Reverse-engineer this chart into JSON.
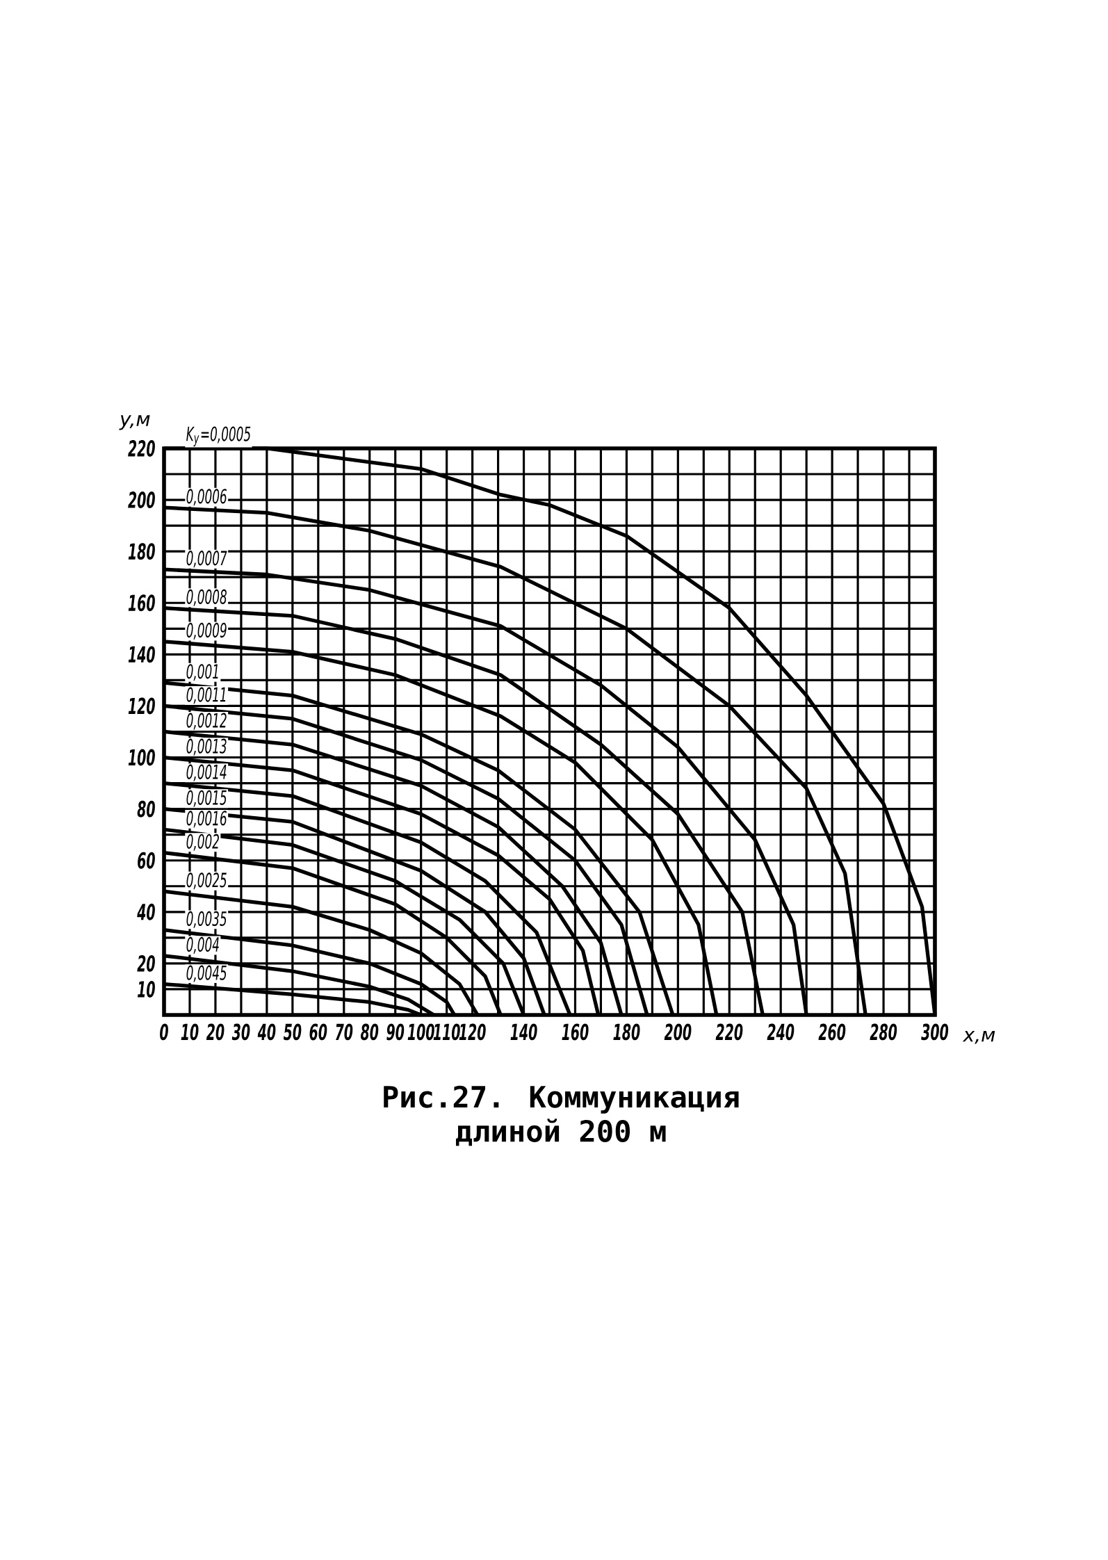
{
  "chart_data": {
    "type": "line",
    "xlabel": "x,м",
    "ylabel": "y,м",
    "xlim": [
      0,
      300
    ],
    "ylim": [
      0,
      220
    ],
    "xticks": [
      0,
      10,
      20,
      30,
      40,
      50,
      60,
      70,
      80,
      90,
      100,
      110,
      120,
      {
        "value": 130,
        "label": null
      },
      140,
      {
        "value": 150,
        "label": null
      },
      160,
      {
        "value": 170,
        "label": null
      },
      180,
      {
        "value": 190,
        "label": null
      },
      200,
      {
        "value": 210,
        "label": null
      },
      220,
      {
        "value": 230,
        "label": null
      },
      240,
      {
        "value": 250,
        "label": null
      },
      260,
      {
        "value": 270,
        "label": null
      },
      280,
      {
        "value": 290,
        "label": null
      },
      300
    ],
    "yticks": [
      {
        "value": 0,
        "label": null
      },
      10,
      20,
      {
        "value": 30,
        "label": null
      },
      40,
      {
        "value": 50,
        "label": null
      },
      60,
      {
        "value": 70,
        "label": null
      },
      80,
      {
        "value": 90,
        "label": null
      },
      100,
      {
        "value": 110,
        "label": null
      },
      120,
      {
        "value": 130,
        "label": null
      },
      140,
      {
        "value": 150,
        "label": null
      },
      160,
      {
        "value": 170,
        "label": null
      },
      180,
      {
        "value": 190,
        "label": null
      },
      200,
      {
        "value": 210,
        "label": null
      },
      220
    ],
    "grid": true,
    "marker": "none",
    "line_style": "solid",
    "annotations": [
      "Рис.27. Коммуникация",
      "длиной 200 м"
    ],
    "series": [
      {
        "name": "K$_{у}$=0,0005",
        "color": "#000000",
        "x": [
          0,
          40,
          100,
          131,
          150,
          180,
          220,
          250,
          280,
          295,
          300
        ],
        "values": [
          220,
          220,
          212,
          202,
          198,
          186,
          158,
          124,
          82,
          42,
          0
        ]
      },
      {
        "name": "0,0006",
        "color": "#000000",
        "x": [
          0,
          40,
          80,
          131,
          180,
          220,
          250,
          265,
          273
        ],
        "values": [
          197,
          195,
          188,
          174,
          150,
          120,
          88,
          55,
          0
        ]
      },
      {
        "name": "0,0007",
        "color": "#000000",
        "x": [
          0,
          40,
          80,
          131,
          170,
          200,
          230,
          245,
          250
        ],
        "values": [
          173,
          171,
          165,
          151,
          128,
          104,
          68,
          35,
          0
        ]
      },
      {
        "name": "0,0008",
        "color": "#000000",
        "x": [
          0,
          50,
          90,
          131,
          170,
          200,
          225,
          233
        ],
        "values": [
          158,
          155,
          146,
          132,
          105,
          78,
          40,
          0
        ]
      },
      {
        "name": "0,0009",
        "color": "#000000",
        "x": [
          0,
          50,
          90,
          131,
          160,
          190,
          208,
          215
        ],
        "values": [
          145,
          141,
          132,
          116,
          98,
          68,
          35,
          0
        ]
      },
      {
        "name": "0,001",
        "color": "#000000",
        "x": [
          0,
          50,
          100,
          130,
          160,
          185,
          198
        ],
        "values": [
          129,
          124,
          109,
          95,
          72,
          40,
          0
        ]
      },
      {
        "name": "0,0011",
        "color": "#000000",
        "x": [
          0,
          50,
          100,
          130,
          160,
          178,
          188
        ],
        "values": [
          120,
          115,
          99,
          84,
          60,
          35,
          0
        ]
      },
      {
        "name": "0,0012",
        "color": "#000000",
        "x": [
          0,
          50,
          100,
          130,
          155,
          170,
          178
        ],
        "values": [
          110,
          105,
          89,
          73,
          50,
          28,
          0
        ]
      },
      {
        "name": "0,0013",
        "color": "#000000",
        "x": [
          0,
          50,
          100,
          130,
          150,
          163,
          169
        ],
        "values": [
          100,
          95,
          78,
          62,
          45,
          25,
          0
        ]
      },
      {
        "name": "0,0014",
        "color": "#000000",
        "x": [
          0,
          50,
          100,
          125,
          145,
          158
        ],
        "values": [
          90,
          85,
          67,
          52,
          32,
          0
        ]
      },
      {
        "name": "0,0015",
        "color": "#000000",
        "x": [
          0,
          50,
          100,
          125,
          140,
          148
        ],
        "values": [
          80,
          75,
          56,
          40,
          22,
          0
        ]
      },
      {
        "name": "0,0016",
        "color": "#000000",
        "x": [
          0,
          50,
          90,
          115,
          132,
          140
        ],
        "values": [
          72,
          66,
          52,
          37,
          20,
          0
        ]
      },
      {
        "name": "0,002",
        "color": "#000000",
        "x": [
          0,
          50,
          90,
          110,
          125,
          131
        ],
        "values": [
          63,
          57,
          43,
          30,
          15,
          0
        ]
      },
      {
        "name": "0,0025",
        "color": "#000000",
        "x": [
          0,
          50,
          80,
          100,
          115,
          122
        ],
        "values": [
          48,
          42,
          33,
          24,
          12,
          0
        ]
      },
      {
        "name": "0,0035",
        "color": "#000000",
        "x": [
          0,
          50,
          80,
          100,
          110,
          113
        ],
        "values": [
          33,
          27,
          20,
          12,
          5,
          0
        ]
      },
      {
        "name": "0,004",
        "color": "#000000",
        "x": [
          0,
          50,
          80,
          95,
          105
        ],
        "values": [
          23,
          17,
          11,
          6,
          0
        ]
      },
      {
        "name": "0,0045",
        "color": "#000000",
        "x": [
          0,
          50,
          80,
          95,
          100
        ],
        "values": [
          12,
          8,
          5,
          2,
          0
        ]
      }
    ]
  }
}
